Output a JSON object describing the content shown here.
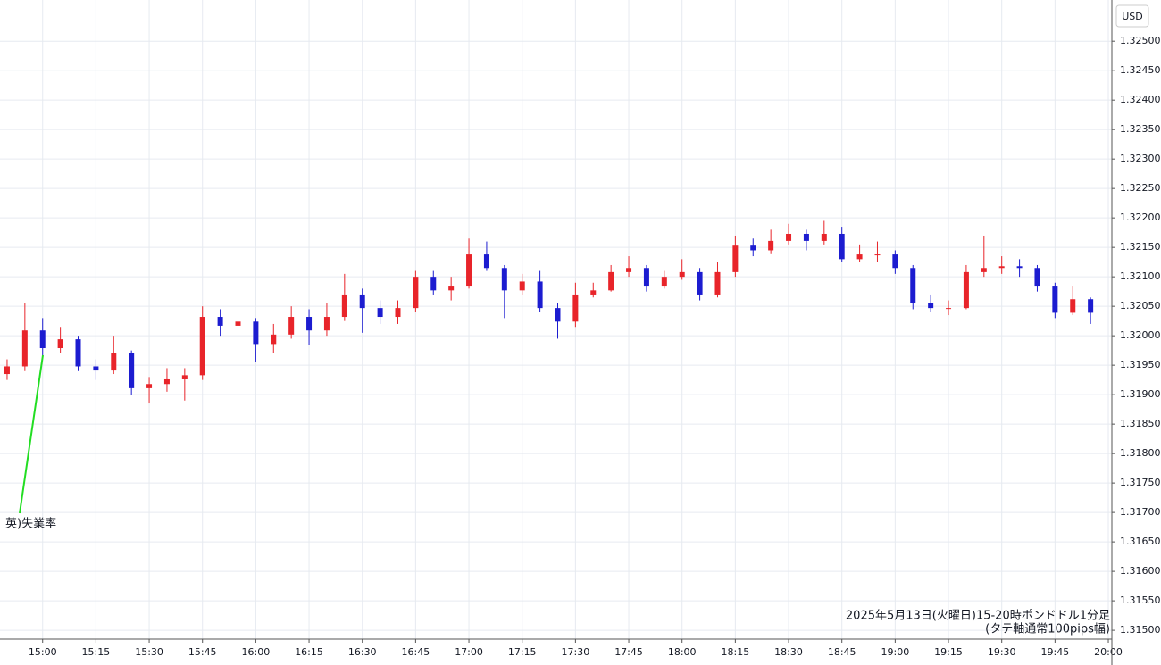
{
  "chart_data": {
    "type": "candlestick",
    "currency": "USD",
    "annotation": "英)失業率",
    "footnote_line1": "2025年5月13日(火曜日)15-20時ポンドドル1分足",
    "footnote_line2": "(タテ軸通常100pips幅)",
    "up_color": "#e8242a",
    "down_color": "#1c1cd0",
    "grid": true,
    "xlim": [
      "14:48",
      "20:01"
    ],
    "xticks": [
      "15:00",
      "15:15",
      "15:30",
      "15:45",
      "16:00",
      "16:15",
      "16:30",
      "16:45",
      "17:00",
      "17:15",
      "17:30",
      "17:45",
      "18:00",
      "18:15",
      "18:30",
      "18:45",
      "19:00",
      "19:15",
      "19:30",
      "19:45",
      "20:00"
    ],
    "ylim": [
      1.31485,
      1.3257
    ],
    "yticks": [
      {
        "value": 1.315,
        "label": "1.31500"
      },
      {
        "value": 1.3155,
        "label": "1.31550"
      },
      {
        "value": 1.316,
        "label": "1.31600"
      },
      {
        "value": 1.3165,
        "label": "1.31650"
      },
      {
        "value": 1.317,
        "label": "1.31700"
      },
      {
        "value": 1.3175,
        "label": "1.31750"
      },
      {
        "value": 1.318,
        "label": "1.31800"
      },
      {
        "value": 1.3185,
        "label": "1.31850"
      },
      {
        "value": 1.319,
        "label": "1.31900"
      },
      {
        "value": 1.3195,
        "label": "1.31950"
      },
      {
        "value": 1.32,
        "label": "1.32000"
      },
      {
        "value": 1.3205,
        "label": "1.32050"
      },
      {
        "value": 1.321,
        "label": "1.32100"
      },
      {
        "value": 1.3215,
        "label": "1.32150"
      },
      {
        "value": 1.322,
        "label": "1.32200"
      },
      {
        "value": 1.3225,
        "label": "1.32250"
      },
      {
        "value": 1.323,
        "label": "1.32300"
      },
      {
        "value": 1.3235,
        "label": "1.32350"
      },
      {
        "value": 1.324,
        "label": "1.32400"
      },
      {
        "value": 1.3245,
        "label": "1.32450"
      },
      {
        "value": 1.325,
        "label": "1.32500"
      }
    ],
    "x": [
      "14:50",
      "14:55",
      "15:00",
      "15:05",
      "15:10",
      "15:15",
      "15:20",
      "15:25",
      "15:30",
      "15:35",
      "15:40",
      "15:45",
      "15:50",
      "15:55",
      "16:00",
      "16:05",
      "16:10",
      "16:15",
      "16:20",
      "16:25",
      "16:30",
      "16:35",
      "16:40",
      "16:45",
      "16:50",
      "16:55",
      "17:00",
      "17:05",
      "17:10",
      "17:15",
      "17:20",
      "17:25",
      "17:30",
      "17:35",
      "17:40",
      "17:45",
      "17:50",
      "17:55",
      "18:00",
      "18:05",
      "18:10",
      "18:15",
      "18:20",
      "18:25",
      "18:30",
      "18:35",
      "18:40",
      "18:45",
      "18:50",
      "18:55",
      "19:00",
      "19:05",
      "19:10",
      "19:15",
      "19:20",
      "19:25",
      "19:30",
      "19:35",
      "19:40",
      "19:45",
      "19:50",
      "19:55"
    ],
    "open": [
      1.31935,
      1.31948,
      1.32009,
      1.31979,
      1.31994,
      1.31948,
      1.31941,
      1.31971,
      1.31911,
      1.31918,
      1.31926,
      1.31933,
      1.32032,
      1.32017,
      1.32024,
      1.31986,
      1.32002,
      1.32032,
      1.32009,
      1.32032,
      1.3207,
      1.32047,
      1.32032,
      1.32047,
      1.321,
      1.32077,
      1.32085,
      1.32138,
      1.32115,
      1.32077,
      1.32092,
      1.32047,
      1.32024,
      1.3207,
      1.32077,
      1.32108,
      1.32115,
      1.32085,
      1.321,
      1.32108,
      1.3207,
      1.32108,
      1.32153,
      1.32145,
      1.32161,
      1.32173,
      1.32161,
      1.32173,
      1.3213,
      1.32138,
      1.32138,
      1.32115,
      1.32055,
      1.32047,
      1.32047,
      1.32108,
      1.32115,
      1.32118,
      1.32115,
      1.32085,
      1.32039,
      1.32062
    ],
    "high": [
      1.3196,
      1.32055,
      1.3203,
      1.32015,
      1.32,
      1.3196,
      1.32,
      1.31975,
      1.3193,
      1.31945,
      1.31945,
      1.3205,
      1.32045,
      1.32065,
      1.3203,
      1.3202,
      1.3205,
      1.32045,
      1.32055,
      1.32105,
      1.3208,
      1.3206,
      1.3206,
      1.3211,
      1.3211,
      1.321,
      1.32165,
      1.3216,
      1.3212,
      1.32105,
      1.3211,
      1.32055,
      1.3209,
      1.3209,
      1.3212,
      1.32135,
      1.3212,
      1.3211,
      1.3213,
      1.32115,
      1.32125,
      1.3217,
      1.32165,
      1.3218,
      1.3219,
      1.3218,
      1.32195,
      1.32185,
      1.32155,
      1.3216,
      1.32145,
      1.3212,
      1.3207,
      1.3206,
      1.3212,
      1.3217,
      1.32135,
      1.3213,
      1.3212,
      1.3209,
      1.32085,
      1.32065
    ],
    "low": [
      1.31925,
      1.3194,
      1.31965,
      1.3197,
      1.3194,
      1.31925,
      1.31935,
      1.319,
      1.31885,
      1.31905,
      1.3189,
      1.31925,
      1.32,
      1.3201,
      1.31955,
      1.3197,
      1.31995,
      1.31985,
      1.32,
      1.32025,
      1.32005,
      1.3202,
      1.3202,
      1.3204,
      1.3207,
      1.3206,
      1.3208,
      1.3211,
      1.3203,
      1.3207,
      1.3204,
      1.31995,
      1.32015,
      1.32065,
      1.32075,
      1.321,
      1.32075,
      1.3208,
      1.32095,
      1.3206,
      1.32065,
      1.321,
      1.32135,
      1.3214,
      1.32155,
      1.32145,
      1.32155,
      1.32125,
      1.32125,
      1.32125,
      1.32105,
      1.32045,
      1.3204,
      1.32035,
      1.32045,
      1.321,
      1.32105,
      1.321,
      1.32075,
      1.3203,
      1.32035,
      1.3202
    ],
    "close": [
      1.31948,
      1.32009,
      1.31979,
      1.31994,
      1.31948,
      1.31941,
      1.31971,
      1.31911,
      1.31918,
      1.31926,
      1.31933,
      1.32032,
      1.32017,
      1.32024,
      1.31986,
      1.32002,
      1.32032,
      1.32009,
      1.32032,
      1.3207,
      1.32047,
      1.32032,
      1.32047,
      1.321,
      1.32077,
      1.32085,
      1.32138,
      1.32115,
      1.32077,
      1.32092,
      1.32047,
      1.32024,
      1.3207,
      1.32077,
      1.32108,
      1.32115,
      1.32085,
      1.321,
      1.32108,
      1.3207,
      1.32108,
      1.32153,
      1.32145,
      1.32161,
      1.32173,
      1.32161,
      1.32173,
      1.3213,
      1.32138,
      1.32138,
      1.32115,
      1.32055,
      1.32047,
      1.32047,
      1.32108,
      1.32115,
      1.32118,
      1.32115,
      1.32085,
      1.32039,
      1.32062,
      1.32039
    ]
  }
}
